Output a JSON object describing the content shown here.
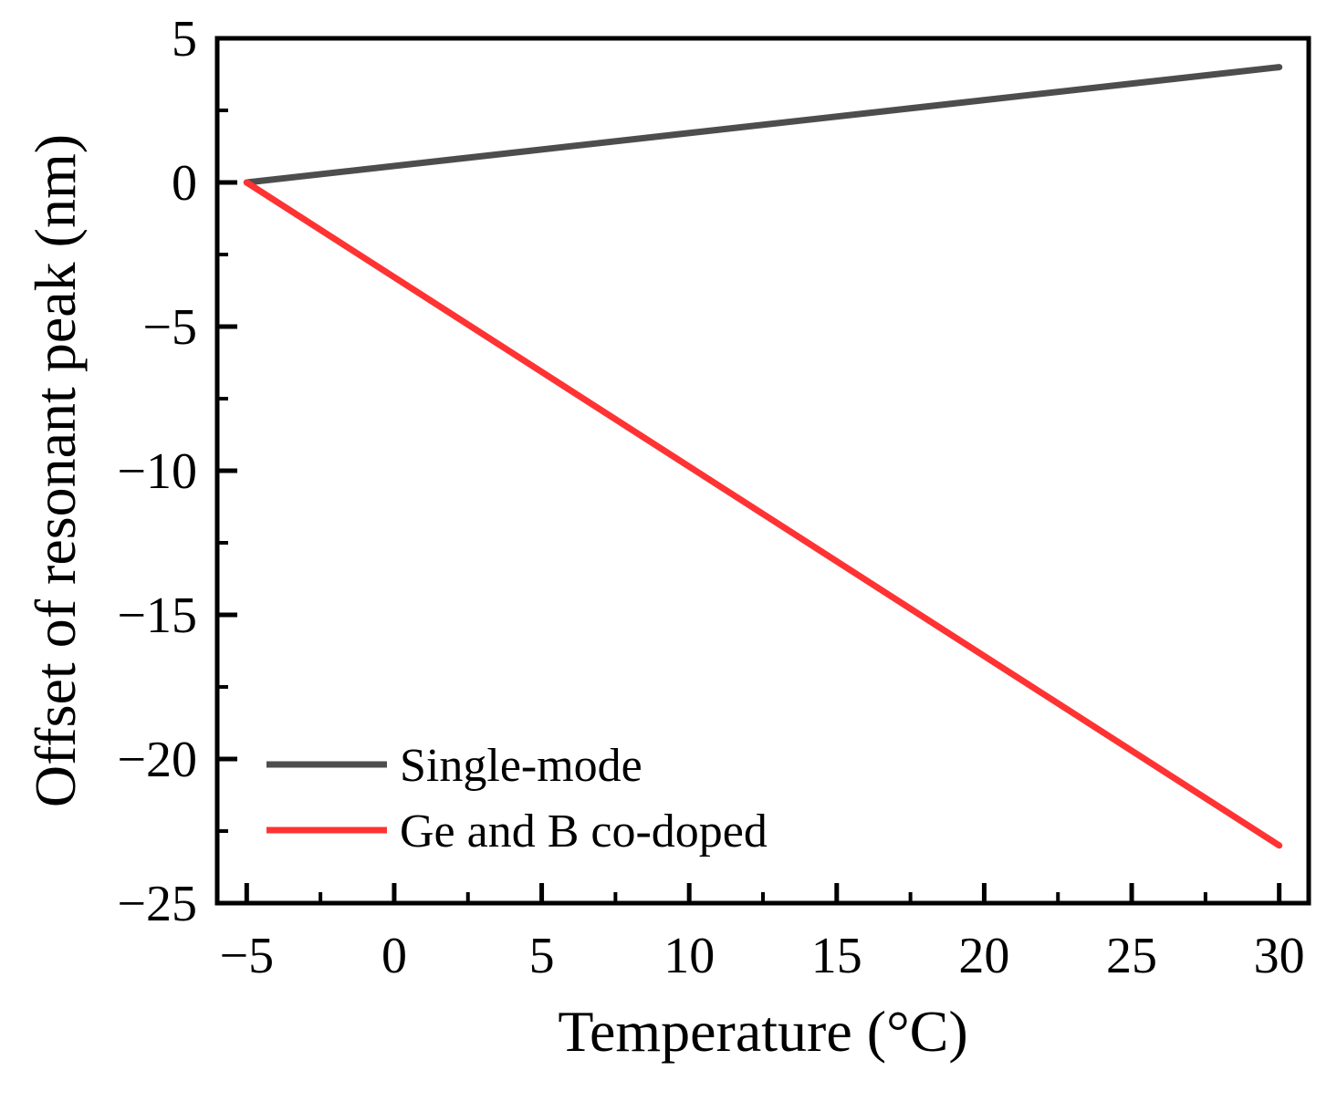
{
  "chart_data": {
    "type": "line",
    "title": "",
    "xlabel": "Temperature (°C)",
    "ylabel": "Offset of resonant peak (nm)",
    "xlim": [
      -6,
      31
    ],
    "ylim": [
      -25,
      5
    ],
    "xticks": [
      -5,
      0,
      5,
      10,
      15,
      20,
      25,
      30
    ],
    "xtick_labels": [
      "−5",
      "0",
      "5",
      "10",
      "15",
      "20",
      "25",
      "30"
    ],
    "yticks": [
      5,
      0,
      -5,
      -10,
      -15,
      -20,
      -25
    ],
    "ytick_labels": [
      "5",
      "0",
      "−5",
      "−10",
      "−15",
      "−20",
      "−25"
    ],
    "grid": false,
    "legend_position": "bottom-left",
    "series": [
      {
        "name": "Single-mode",
        "color": "#4d4d4d",
        "x": [
          -5,
          30
        ],
        "y": [
          0,
          4
        ]
      },
      {
        "name": "Ge and B co-doped",
        "color": "#ff3333",
        "x": [
          -5,
          30
        ],
        "y": [
          0,
          -23
        ]
      }
    ]
  }
}
